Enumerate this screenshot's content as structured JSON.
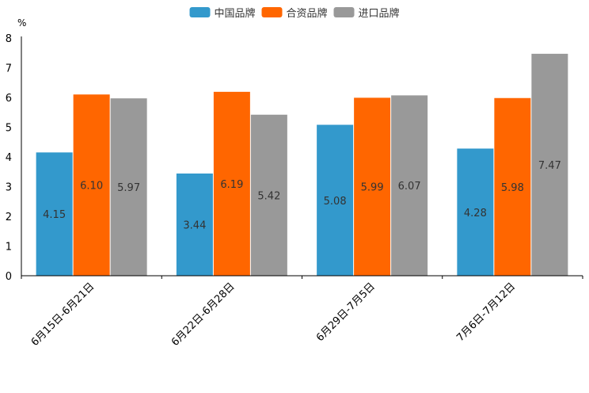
{
  "chart_data": {
    "type": "bar",
    "title": "",
    "unit_label": "%",
    "xlabel": "",
    "ylabel": "%",
    "ylim": [
      0,
      8
    ],
    "yticks": [
      "0",
      "1",
      "2",
      "3",
      "4",
      "5",
      "6",
      "7",
      "8"
    ],
    "grid": false,
    "legend_position": "top-center",
    "categories": [
      "6月15日-6月21日",
      "6月22日-6月28日",
      "6月29日-7月5日",
      "7月6日-7月12日"
    ],
    "series": [
      {
        "name": "中国品牌",
        "color": "#3399cc",
        "values": [
          4.15,
          3.44,
          5.08,
          4.28
        ],
        "labels": [
          "4.15",
          "3.44",
          "5.08",
          "4.28"
        ]
      },
      {
        "name": "合资品牌",
        "color": "#ff6600",
        "values": [
          6.1,
          6.19,
          5.99,
          5.98
        ],
        "labels": [
          "6.10",
          "6.19",
          "5.99",
          "5.98"
        ]
      },
      {
        "name": "进口品牌",
        "color": "#999999",
        "values": [
          5.97,
          5.42,
          6.07,
          7.47
        ],
        "labels": [
          "5.97",
          "5.42",
          "6.07",
          "7.47"
        ]
      }
    ]
  }
}
